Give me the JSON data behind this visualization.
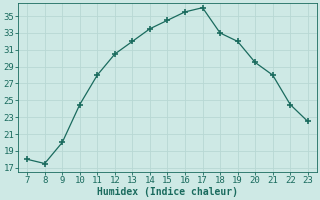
{
  "x": [
    7,
    8,
    9,
    10,
    11,
    12,
    13,
    14,
    15,
    16,
    17,
    18,
    19,
    20,
    21,
    22,
    23
  ],
  "y": [
    18,
    17.5,
    20,
    24.5,
    28,
    30.5,
    32,
    33.5,
    34.5,
    35.5,
    36,
    33,
    32,
    29.5,
    28,
    24.5,
    22.5
  ],
  "line_color": "#1a6b5e",
  "marker": "+",
  "marker_size": 4,
  "marker_lw": 1.2,
  "bg_color": "#cee9e5",
  "grid_color": "#b8d8d4",
  "xlabel": "Humidex (Indice chaleur)",
  "xlabel_fontsize": 7,
  "tick_color": "#1a6b5e",
  "xlim": [
    6.5,
    23.5
  ],
  "ylim": [
    16.5,
    36.5
  ],
  "yticks": [
    17,
    19,
    21,
    23,
    25,
    27,
    29,
    31,
    33,
    35
  ],
  "xticks": [
    7,
    8,
    9,
    10,
    11,
    12,
    13,
    14,
    15,
    16,
    17,
    18,
    19,
    20,
    21,
    22,
    23
  ],
  "tick_fontsize": 6.5,
  "line_width": 0.9
}
